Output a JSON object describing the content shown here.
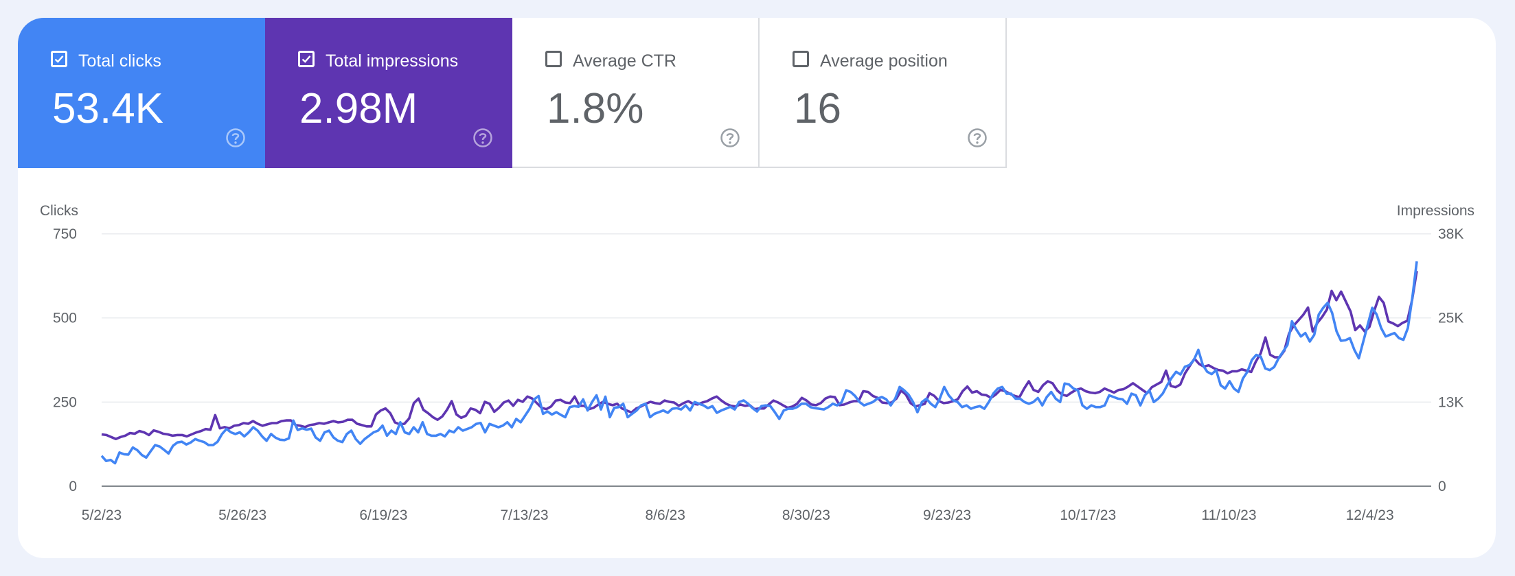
{
  "tiles": [
    {
      "name": "total-clicks",
      "label": "Total clicks",
      "value": "53.4K",
      "checked": true,
      "color": "#4285f4"
    },
    {
      "name": "total-impressions",
      "label": "Total impressions",
      "value": "2.98M",
      "checked": true,
      "color": "#5e35b1"
    },
    {
      "name": "average-ctr",
      "label": "Average CTR",
      "value": "1.8%",
      "checked": false,
      "color": "#ffffff"
    },
    {
      "name": "average-position",
      "label": "Average position",
      "value": "16",
      "checked": false,
      "color": "#ffffff"
    }
  ],
  "chart_data": {
    "type": "line",
    "x_start": "5/2/23",
    "x_end": "12/12/23",
    "xlabels": [
      "5/2/23",
      "5/26/23",
      "6/19/23",
      "7/13/23",
      "8/6/23",
      "8/30/23",
      "9/23/23",
      "10/17/23",
      "11/10/23",
      "12/4/23"
    ],
    "left_axis": {
      "label": "Clicks",
      "ticks": [
        "0",
        "250",
        "500",
        "750"
      ],
      "ylim": [
        0,
        750
      ]
    },
    "right_axis": {
      "label": "Impressions",
      "ticks": [
        "0",
        "13K",
        "25K",
        "38K"
      ],
      "ylim": [
        0,
        38000
      ]
    },
    "grid": true,
    "series": [
      {
        "name": "Clicks",
        "axis": "left",
        "color": "#4285f4",
        "values": [
          90,
          75,
          78,
          68,
          100,
          95,
          94,
          115,
          107,
          93,
          85,
          104,
          122,
          118,
          108,
          97,
          120,
          130,
          132,
          124,
          130,
          140,
          135,
          131,
          122,
          122,
          132,
          155,
          170,
          160,
          155,
          160,
          148,
          160,
          175,
          165,
          148,
          135,
          155,
          144,
          138,
          137,
          142,
          195,
          167,
          172,
          168,
          171,
          145,
          135,
          160,
          165,
          145,
          135,
          131,
          155,
          165,
          140,
          126,
          140,
          150,
          160,
          165,
          180,
          150,
          165,
          155,
          190,
          160,
          155,
          175,
          160,
          190,
          155,
          150,
          150,
          155,
          148,
          165,
          160,
          175,
          165,
          170,
          175,
          185,
          188,
          160,
          185,
          180,
          175,
          180,
          190,
          175,
          200,
          190,
          210,
          230,
          258,
          268,
          215,
          222,
          213,
          220,
          212,
          205,
          235,
          238,
          236,
          258,
          225,
          250,
          270,
          228,
          266,
          205,
          233,
          235,
          245,
          205,
          215,
          225,
          240,
          245,
          205,
          215,
          220,
          225,
          218,
          230,
          232,
          228,
          240,
          225,
          250,
          245,
          240,
          232,
          238,
          218,
          225,
          230,
          236,
          228,
          250,
          255,
          245,
          232,
          222,
          238,
          240,
          238,
          220,
          200,
          225,
          230,
          230,
          235,
          245,
          245,
          235,
          232,
          230,
          228,
          235,
          245,
          240,
          250,
          285,
          280,
          268,
          250,
          240,
          245,
          250,
          260,
          265,
          258,
          240,
          260,
          295,
          285,
          272,
          250,
          220,
          250,
          260,
          245,
          235,
          260,
          295,
          270,
          255,
          250,
          235,
          240,
          230,
          235,
          238,
          230,
          250,
          275,
          290,
          295,
          275,
          275,
          260,
          260,
          250,
          245,
          250,
          262,
          240,
          265,
          280,
          260,
          250,
          305,
          302,
          290,
          285,
          240,
          230,
          240,
          235,
          235,
          240,
          270,
          265,
          260,
          258,
          245,
          275,
          270,
          240,
          270,
          285,
          250,
          260,
          275,
          300,
          322,
          340,
          332,
          355,
          360,
          375,
          405,
          360,
          340,
          333,
          345,
          300,
          290,
          312,
          290,
          280,
          320,
          340,
          375,
          390,
          385,
          350,
          345,
          354,
          380,
          400,
          420,
          490,
          465,
          445,
          455,
          430,
          450,
          510,
          530,
          545,
          515,
          460,
          432,
          434,
          440,
          405,
          380,
          430,
          480,
          530,
          510,
          470,
          445,
          450,
          455,
          440,
          435,
          470,
          560,
          668
        ]
      },
      {
        "name": "Impressions",
        "axis": "right",
        "color": "#5e35b1",
        "values": [
          7800,
          7700,
          7400,
          7100,
          7400,
          7600,
          8000,
          7900,
          8300,
          8100,
          7700,
          8400,
          8200,
          7900,
          7800,
          7600,
          7700,
          7700,
          7500,
          7800,
          8100,
          8300,
          8600,
          8500,
          10700,
          8700,
          8900,
          8700,
          9100,
          9200,
          9500,
          9400,
          9800,
          9400,
          9100,
          9300,
          9500,
          9500,
          9800,
          9900,
          9900,
          9200,
          9100,
          8900,
          9200,
          9300,
          9500,
          9400,
          9600,
          9800,
          9600,
          9700,
          10000,
          10000,
          9400,
          9200,
          9000,
          9000,
          10800,
          11400,
          11700,
          11000,
          9600,
          9300,
          9400,
          10200,
          12500,
          13200,
          11500,
          11000,
          10400,
          10000,
          10500,
          11500,
          12800,
          10800,
          10300,
          10600,
          11700,
          11500,
          11000,
          12700,
          12400,
          11200,
          11800,
          12600,
          12900,
          12100,
          13000,
          12700,
          13500,
          13200,
          12500,
          11800,
          11600,
          12000,
          12900,
          13000,
          12600,
          12500,
          13500,
          12100,
          12100,
          11600,
          11800,
          12300,
          12700,
          12400,
          12200,
          12400,
          11700,
          11400,
          11100,
          11700,
          12000,
          12400,
          12700,
          12500,
          12400,
          12900,
          12700,
          12600,
          12100,
          12500,
          12800,
          12400,
          12300,
          12600,
          12800,
          13200,
          13500,
          12900,
          12400,
          12100,
          12000,
          12300,
          12100,
          12200,
          11600,
          11700,
          11700,
          12300,
          12900,
          12600,
          12200,
          11800,
          12000,
          12400,
          13300,
          12900,
          12300,
          12200,
          12500,
          13200,
          13500,
          13400,
          12200,
          12300,
          12600,
          12800,
          12800,
          14300,
          14200,
          13600,
          13300,
          12600,
          12500,
          12600,
          13200,
          14400,
          13800,
          12500,
          12000,
          12200,
          12400,
          14000,
          13600,
          12800,
          12500,
          12600,
          12800,
          13100,
          14300,
          15000,
          14100,
          14300,
          13800,
          13700,
          13300,
          13800,
          14500,
          14300,
          13900,
          13600,
          13400,
          14700,
          15800,
          14500,
          14200,
          15200,
          15800,
          15500,
          14400,
          13800,
          13600,
          14100,
          14500,
          14700,
          14300,
          14100,
          14000,
          14200,
          14700,
          14400,
          14100,
          14500,
          14600,
          15000,
          15500,
          15000,
          14500,
          14000,
          14900,
          15300,
          15700,
          17400,
          15100,
          14900,
          15300,
          17000,
          18100,
          19200,
          18400,
          18000,
          18200,
          17800,
          17500,
          17400,
          17000,
          17300,
          17300,
          17600,
          17400,
          17200,
          18800,
          20000,
          22400,
          19800,
          19400,
          19400,
          20400,
          23000,
          24200,
          25000,
          25800,
          26900,
          23300,
          24600,
          25500,
          26600,
          29400,
          28000,
          29300,
          27800,
          26300,
          23500,
          24200,
          23300,
          24000,
          26400,
          28500,
          27600,
          24800,
          24500,
          24100,
          24600,
          24900,
          28000,
          32400
        ]
      }
    ]
  }
}
